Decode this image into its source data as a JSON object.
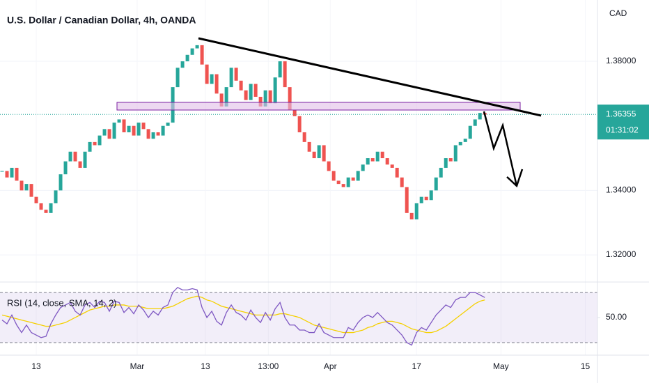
{
  "chart_data": [
    {
      "type": "candlestick",
      "title": "U.S. Dollar / Canadian Dollar, 4h, OANDA",
      "currency": "CAD",
      "up_color": "#26a69a",
      "down_color": "#ef5350",
      "values": [
        1.346,
        1.344,
        1.347,
        1.343,
        1.34,
        1.342,
        1.338,
        1.336,
        1.334,
        1.333,
        1.336,
        1.34,
        1.345,
        1.349,
        1.352,
        1.349,
        1.347,
        1.352,
        1.355,
        1.354,
        1.357,
        1.359,
        1.356,
        1.361,
        1.362,
        1.358,
        1.36,
        1.357,
        1.361,
        1.359,
        1.356,
        1.358,
        1.357,
        1.36,
        1.361,
        1.372,
        1.378,
        1.38,
        1.382,
        1.384,
        1.385,
        1.379,
        1.373,
        1.376,
        1.37,
        1.366,
        1.372,
        1.378,
        1.374,
        1.371,
        1.368,
        1.373,
        1.369,
        1.366,
        1.371,
        1.367,
        1.375,
        1.38,
        1.372,
        1.365,
        1.363,
        1.358,
        1.355,
        1.352,
        1.35,
        1.354,
        1.349,
        1.346,
        1.343,
        1.342,
        1.341,
        1.344,
        1.343,
        1.346,
        1.348,
        1.35,
        1.349,
        1.352,
        1.35,
        1.348,
        1.347,
        1.344,
        1.341,
        1.333,
        1.331,
        1.336,
        1.338,
        1.337,
        1.34,
        1.344,
        1.347,
        1.35,
        1.349,
        1.354,
        1.355,
        1.356,
        1.36,
        1.362,
        1.364,
        1.3635
      ],
      "last_price": 1.36355,
      "countdown": "01:31:02",
      "xlim": [
        -0.43,
        122.1
      ],
      "ylim": [
        1.3116,
        1.399
      ],
      "yticks": [
        {
          "value": 1.32,
          "label": "1.32000"
        },
        {
          "value": 1.34,
          "label": "1.34000"
        },
        {
          "value": 1.38,
          "label": "1.38000"
        }
      ],
      "grid": true
    },
    {
      "type": "line",
      "title": "RSI (14, close, SMA, 14, 2)",
      "series": [
        {
          "color": "#7e57c2",
          "values": [
            48,
            45,
            52,
            44,
            38,
            44,
            38,
            36,
            34,
            35,
            45,
            52,
            58,
            60,
            62,
            55,
            52,
            60,
            62,
            58,
            63,
            62,
            55,
            63,
            62,
            54,
            58,
            53,
            60,
            56,
            50,
            55,
            52,
            58,
            60,
            70,
            74,
            72,
            72,
            73,
            72,
            58,
            50,
            55,
            47,
            44,
            54,
            60,
            54,
            52,
            48,
            56,
            50,
            46,
            54,
            48,
            57,
            62,
            50,
            44,
            44,
            40,
            40,
            38,
            38,
            45,
            38,
            36,
            34,
            34,
            34,
            42,
            40,
            46,
            50,
            52,
            50,
            54,
            50,
            46,
            44,
            40,
            36,
            30,
            28,
            38,
            42,
            40,
            46,
            52,
            56,
            60,
            58,
            64,
            66,
            66,
            70,
            70,
            68,
            66
          ]
        },
        {
          "color": "#f5d000",
          "values": [
            52,
            51,
            50,
            49,
            48,
            47,
            46,
            45,
            44,
            43,
            43,
            44,
            45,
            46,
            48,
            50,
            52,
            54,
            56,
            57,
            58,
            59,
            59,
            60,
            60,
            60,
            59,
            59,
            59,
            58,
            57,
            57,
            57,
            57,
            58,
            59,
            61,
            63,
            65,
            66,
            67,
            66,
            64,
            63,
            61,
            59,
            58,
            57,
            56,
            55,
            54,
            53,
            52,
            52,
            52,
            52,
            52,
            53,
            53,
            52,
            51,
            50,
            48,
            46,
            44,
            43,
            42,
            41,
            40,
            39,
            38,
            38,
            38,
            39,
            40,
            42,
            43,
            45,
            46,
            47,
            47,
            46,
            45,
            43,
            41,
            40,
            39,
            38,
            38,
            39,
            41,
            43,
            46,
            49,
            52,
            55,
            58,
            61,
            63,
            64
          ]
        }
      ],
      "bands": [
        30,
        70
      ],
      "xlim": [
        -0.43,
        122.1
      ],
      "ylim": [
        20,
        78.3
      ],
      "yticks": [
        {
          "value": 50,
          "label": "50.00"
        }
      ],
      "xticks": [
        {
          "value": 7,
          "label": "13"
        },
        {
          "value": 27.7,
          "label": "Mar"
        },
        {
          "value": 41.7,
          "label": "13"
        },
        {
          "value": 54.6,
          "label": "13:00"
        },
        {
          "value": 67.3,
          "label": "Apr"
        },
        {
          "value": 85,
          "label": "17"
        },
        {
          "value": 102.3,
          "label": "May"
        },
        {
          "value": 119.6,
          "label": "15"
        }
      ]
    }
  ]
}
